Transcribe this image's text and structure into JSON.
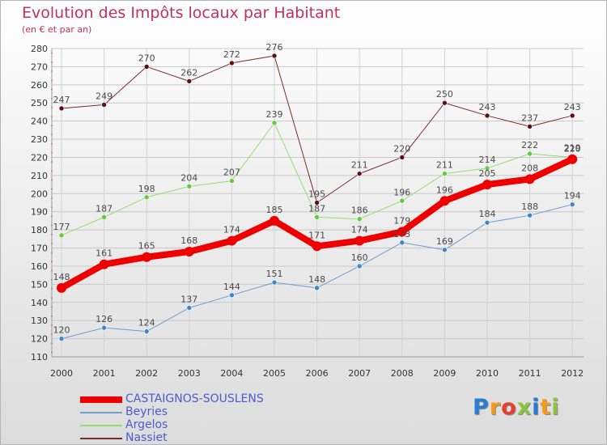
{
  "title": "Evolution des Impôts locaux par Habitant",
  "subtitle": "(en € et par an)",
  "logo": {
    "text": "Proxiti",
    "colors": [
      "#2a7bd4",
      "#f39a1c",
      "#e83f2e",
      "#8bc43f",
      "#2a7bd4",
      "#f39a1c",
      "#8bc43f"
    ]
  },
  "chart_data": {
    "type": "line",
    "title": "Evolution des Impôts locaux par Habitant",
    "subtitle": "(en € et par an)",
    "xlabel": "",
    "ylabel": "",
    "ylim": [
      110,
      280
    ],
    "yticks": [
      110,
      120,
      130,
      140,
      150,
      160,
      170,
      180,
      190,
      200,
      210,
      220,
      230,
      240,
      250,
      260,
      270,
      280
    ],
    "grid": true,
    "legend_position": "bottom-left",
    "x": [
      "2000",
      "2001",
      "2002",
      "2003",
      "2004",
      "2005",
      "2006",
      "2007",
      "2008",
      "2009",
      "2010",
      "2011",
      "2012"
    ],
    "series": [
      {
        "name": "Nassiet",
        "color": "#7a2a2a",
        "marker": "#5a1010",
        "width": 1,
        "radius": 3,
        "values": [
          247,
          249,
          270,
          262,
          272,
          276,
          195,
          211,
          220,
          250,
          243,
          237,
          243
        ]
      },
      {
        "name": "Argelos",
        "color": "#8fe070",
        "marker": "#66c840",
        "width": 1,
        "radius": 3,
        "values": [
          177,
          187,
          198,
          204,
          207,
          239,
          187,
          186,
          196,
          211,
          214,
          222,
          220
        ]
      },
      {
        "name": "Beyries",
        "color": "#6a9fd0",
        "marker": "#3f86c8",
        "width": 1,
        "radius": 3,
        "values": [
          120,
          126,
          124,
          137,
          144,
          151,
          148,
          160,
          173,
          169,
          184,
          188,
          194
        ]
      },
      {
        "name": "CASTAIGNOS-SOUSLENS",
        "color": "#ee0000",
        "marker": "#ee0000",
        "width": 8,
        "radius": 6,
        "values": [
          148,
          161,
          165,
          168,
          174,
          185,
          171,
          174,
          179,
          196,
          205,
          208,
          219
        ]
      }
    ],
    "legend_order": [
      "CASTAIGNOS-SOUSLENS",
      "Beyries",
      "Argelos",
      "Nassiet"
    ]
  }
}
